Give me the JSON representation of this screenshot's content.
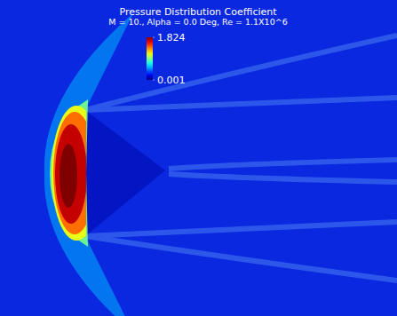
{
  "chart_data": {
    "type": "contour",
    "title": "Pressure Distribution Coefficient",
    "subtitle": "M = 10., Alpha = 0.0 Deg, Re = 1.1X10^6",
    "colorbar": {
      "range": [
        0.001,
        1.824
      ],
      "ticks": [
        1.824,
        0.001
      ]
    },
    "levels": [
      0.55,
      0.9,
      1.1,
      1.4,
      1.7,
      1.824
    ]
  }
}
